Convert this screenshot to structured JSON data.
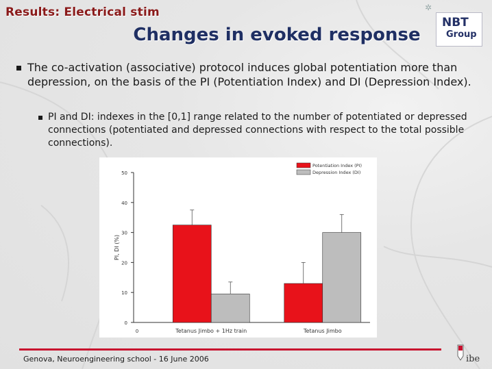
{
  "header": {
    "section_title": "Results: Electrical stim",
    "slide_title": "Changes in evoked response",
    "logo_line1": "NBT",
    "logo_line2": "Group"
  },
  "bullets": {
    "main": "The co-activation (associative) protocol induces global potentiation more than depression, on the basis of the PI (Potentiation Index) and DI (Depression Index).",
    "sub": "PI and DI: indexes in the [0,1] range related to the number of potentiated or depressed connections (potentiated and depressed connections with respect to the total possible connections)."
  },
  "footer": {
    "text": "Genova, Neuroengineering school - 16 June 2006",
    "logo_text": "ibe"
  },
  "colors": {
    "section_title": "#8a1a1a",
    "slide_title": "#1f2f63",
    "accent_line": "#c8102e",
    "potentiation": "#e8121a",
    "depression": "#bdbdbd"
  },
  "chart_data": {
    "type": "bar",
    "ylabel": "PI, DI (%)",
    "xlabel": "",
    "ylim": [
      0,
      50
    ],
    "yticks": [
      0,
      10,
      20,
      30,
      40,
      50
    ],
    "x_origin_label": "0",
    "categories": [
      "Tetanus Jimbo + 1Hz train",
      "Tetanus Jimbo"
    ],
    "series": [
      {
        "name": "Potentiation Index (PI)",
        "color": "#e8121a",
        "values": [
          32.5,
          13
        ],
        "errors": [
          5,
          7
        ]
      },
      {
        "name": "Depression Index (DI)",
        "color": "#bdbdbd",
        "values": [
          9.5,
          30
        ],
        "errors": [
          4,
          6
        ]
      }
    ],
    "legend": "top-right"
  }
}
